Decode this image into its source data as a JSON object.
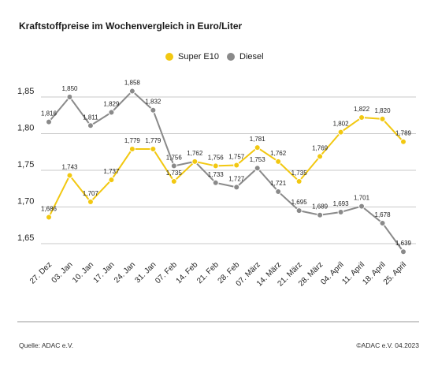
{
  "header": {
    "title": "Kraftstoffpreise im Wochenvergleich in Euro/Liter"
  },
  "legend": {
    "items": [
      "Super E10",
      "Diesel"
    ]
  },
  "footer": {
    "source": "Quelle: ADAC e.V.",
    "copyright": "©ADAC e.V. 04.2023"
  },
  "colors": {
    "super": "#f2c811",
    "diesel": "#8a8a8a",
    "grid": "#c8c8c8",
    "baseline": "#999999"
  },
  "chart_data": {
    "type": "line",
    "title": "Kraftstoffpreise im Wochenvergleich in Euro/Liter",
    "xlabel": "",
    "ylabel": "",
    "ylim": [
      1.6,
      1.87
    ],
    "yticks": [
      1.65,
      1.7,
      1.75,
      1.8,
      1.85
    ],
    "ytick_labels": [
      "1,65",
      "1,70",
      "1,75",
      "1,80",
      "1,85"
    ],
    "grid": true,
    "legend_position": "top-center",
    "categories": [
      "27. Dez",
      "03. Jan",
      "10. Jan",
      "17. Jan",
      "24. Jan",
      "31. Jan",
      "07. Feb",
      "14. Feb",
      "21. Feb",
      "28. Feb",
      "07. März",
      "14. März",
      "21. März",
      "28. März",
      "04. April",
      "11. April",
      "18. April",
      "25. April"
    ],
    "series": [
      {
        "name": "Super E10",
        "values": [
          1.686,
          1.743,
          1.707,
          1.737,
          1.779,
          1.779,
          1.735,
          1.762,
          1.756,
          1.757,
          1.781,
          1.762,
          1.735,
          1.769,
          1.802,
          1.822,
          1.82,
          1.789
        ],
        "labels": [
          "1,686",
          "1,743",
          "1,707",
          "1,737",
          "1,779",
          "1,779",
          "1,735",
          "",
          "1,756",
          "1,757",
          "1,781",
          "1,762",
          "1,735",
          "1,769",
          "1,802",
          "1,822",
          "1,820",
          "1,789"
        ]
      },
      {
        "name": "Diesel",
        "values": [
          1.816,
          1.85,
          1.811,
          1.829,
          1.858,
          1.832,
          1.756,
          1.762,
          1.733,
          1.727,
          1.753,
          1.721,
          1.695,
          1.689,
          1.693,
          1.701,
          1.678,
          1.639
        ],
        "labels": [
          "1,816",
          "1,850",
          "1,811",
          "1,829",
          "1,858",
          "1,832",
          "1,756",
          "1,762",
          "1,733",
          "1,727",
          "1,753",
          "1,721",
          "1,695",
          "1,689",
          "1,693",
          "1,701",
          "1,678",
          "1,639"
        ]
      }
    ]
  }
}
